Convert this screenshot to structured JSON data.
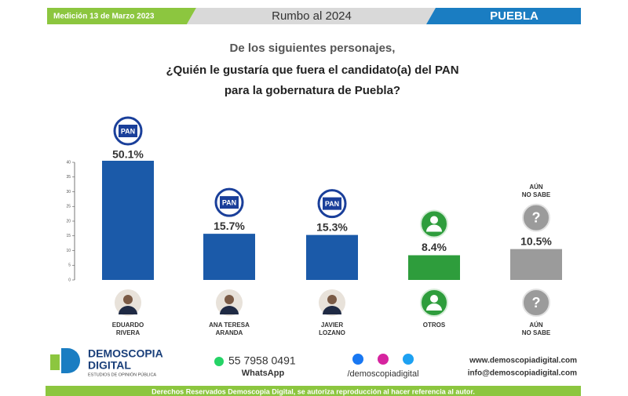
{
  "header": {
    "date": "Medición 13 de Marzo 2023",
    "title": "Rumbo al 2024",
    "region": "PUEBLA"
  },
  "icons": {
    "party": "PAN",
    "unknown": "?"
  },
  "chart_data": {
    "type": "bar",
    "title": [
      "De los siguientes personajes,",
      "¿Quién le gustaría que fuera el candidato(a) del PAN",
      "para la gobernatura de Puebla?"
    ],
    "categories": [
      "EDUARDO\nRIVERA",
      "ANA TERESA\nARANDA",
      "JAVIER\nLOZANO",
      "OTROS",
      "AÚN\nNO SABE"
    ],
    "values": [
      50.1,
      15.7,
      15.3,
      8.4,
      10.5
    ],
    "value_labels": [
      "50.1%",
      "15.7%",
      "15.3%",
      "8.4%",
      "10.5%"
    ],
    "colors": [
      "#1b5aa9",
      "#1b5aa9",
      "#1b5aa9",
      "#2e9d3c",
      "#9b9b9b"
    ],
    "ylim": [
      0,
      40
    ],
    "yticks": [
      0,
      5,
      10,
      15,
      20,
      25,
      30,
      35,
      40
    ],
    "grid": false
  },
  "footer": {
    "brand": "DEMOSCOPIA",
    "brand2": "DIGITAL",
    "tagline": "ESTUDIOS DE OPINIÓN PÚBLICA",
    "phone": "55 7958 0491",
    "whatsapp": "WhatsApp",
    "social": "/demoscopiadigital",
    "web": "www.demoscopiadigital.com",
    "email": "info@demoscopiadigital.com",
    "rights": "Derechos Reservados Demoscopia Digital, se autoriza reproducción al hacer referencia al autor."
  }
}
